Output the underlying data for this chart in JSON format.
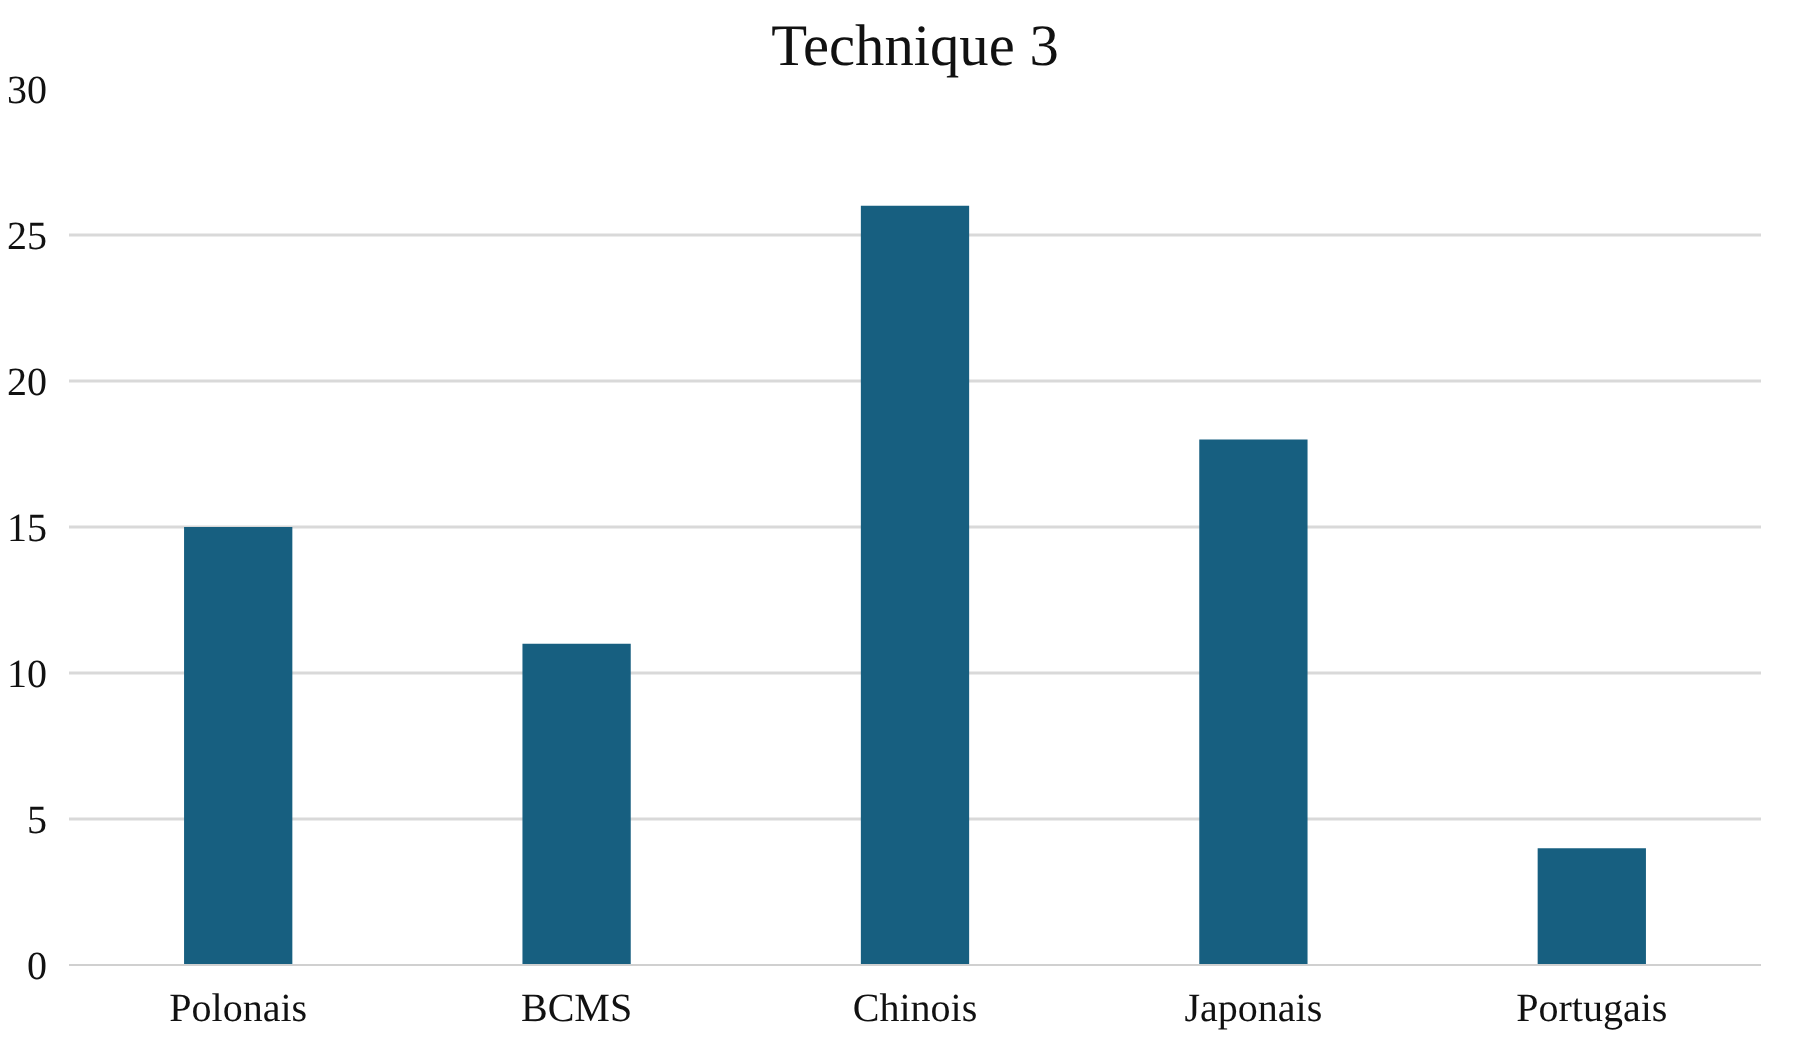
{
  "chart_data": {
    "type": "bar",
    "title": "Technique 3",
    "categories": [
      "Polonais",
      "BCMS",
      "Chinois",
      "Japonais",
      "Portugais"
    ],
    "values": [
      15,
      11,
      26,
      18,
      4
    ],
    "color": "#175f80",
    "ylim": [
      0,
      30
    ],
    "yticks": [
      0,
      5,
      10,
      15,
      20,
      25,
      30
    ],
    "grid": "y"
  }
}
